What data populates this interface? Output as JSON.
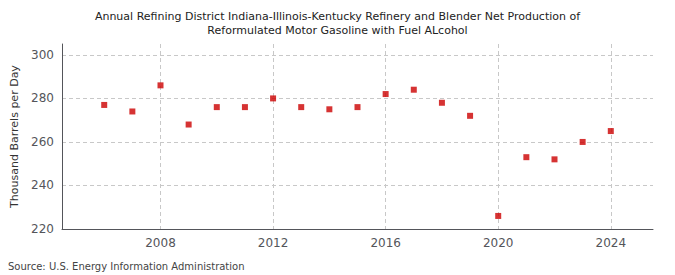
{
  "chart_data": {
    "type": "scatter",
    "title": "Annual Refining District Indiana-Illinois-Kentucky Refinery and Blender Net Production of\nReformulated Motor Gasoline with Fuel ALcohol",
    "ylabel": "Thousand Barrels per Day",
    "annotations": [
      "Source: U.S. Energy Information Administration"
    ],
    "x": [
      2006,
      2007,
      2008,
      2009,
      2010,
      2011,
      2012,
      2013,
      2014,
      2015,
      2016,
      2017,
      2018,
      2019,
      2020,
      2021,
      2022,
      2023,
      2024
    ],
    "values": [
      277,
      274,
      286,
      268,
      276,
      276,
      280,
      276,
      275,
      276,
      282,
      284,
      278,
      272,
      226,
      253,
      252,
      260,
      265
    ],
    "xlim": [
      2004.5,
      2025.5
    ],
    "xticks": [
      2008,
      2012,
      2016,
      2020,
      2024
    ],
    "ylim": [
      220,
      305
    ],
    "yticks": [
      220,
      240,
      260,
      280,
      300
    ],
    "color": "#cc0000",
    "marker": "square",
    "grid": true
  }
}
